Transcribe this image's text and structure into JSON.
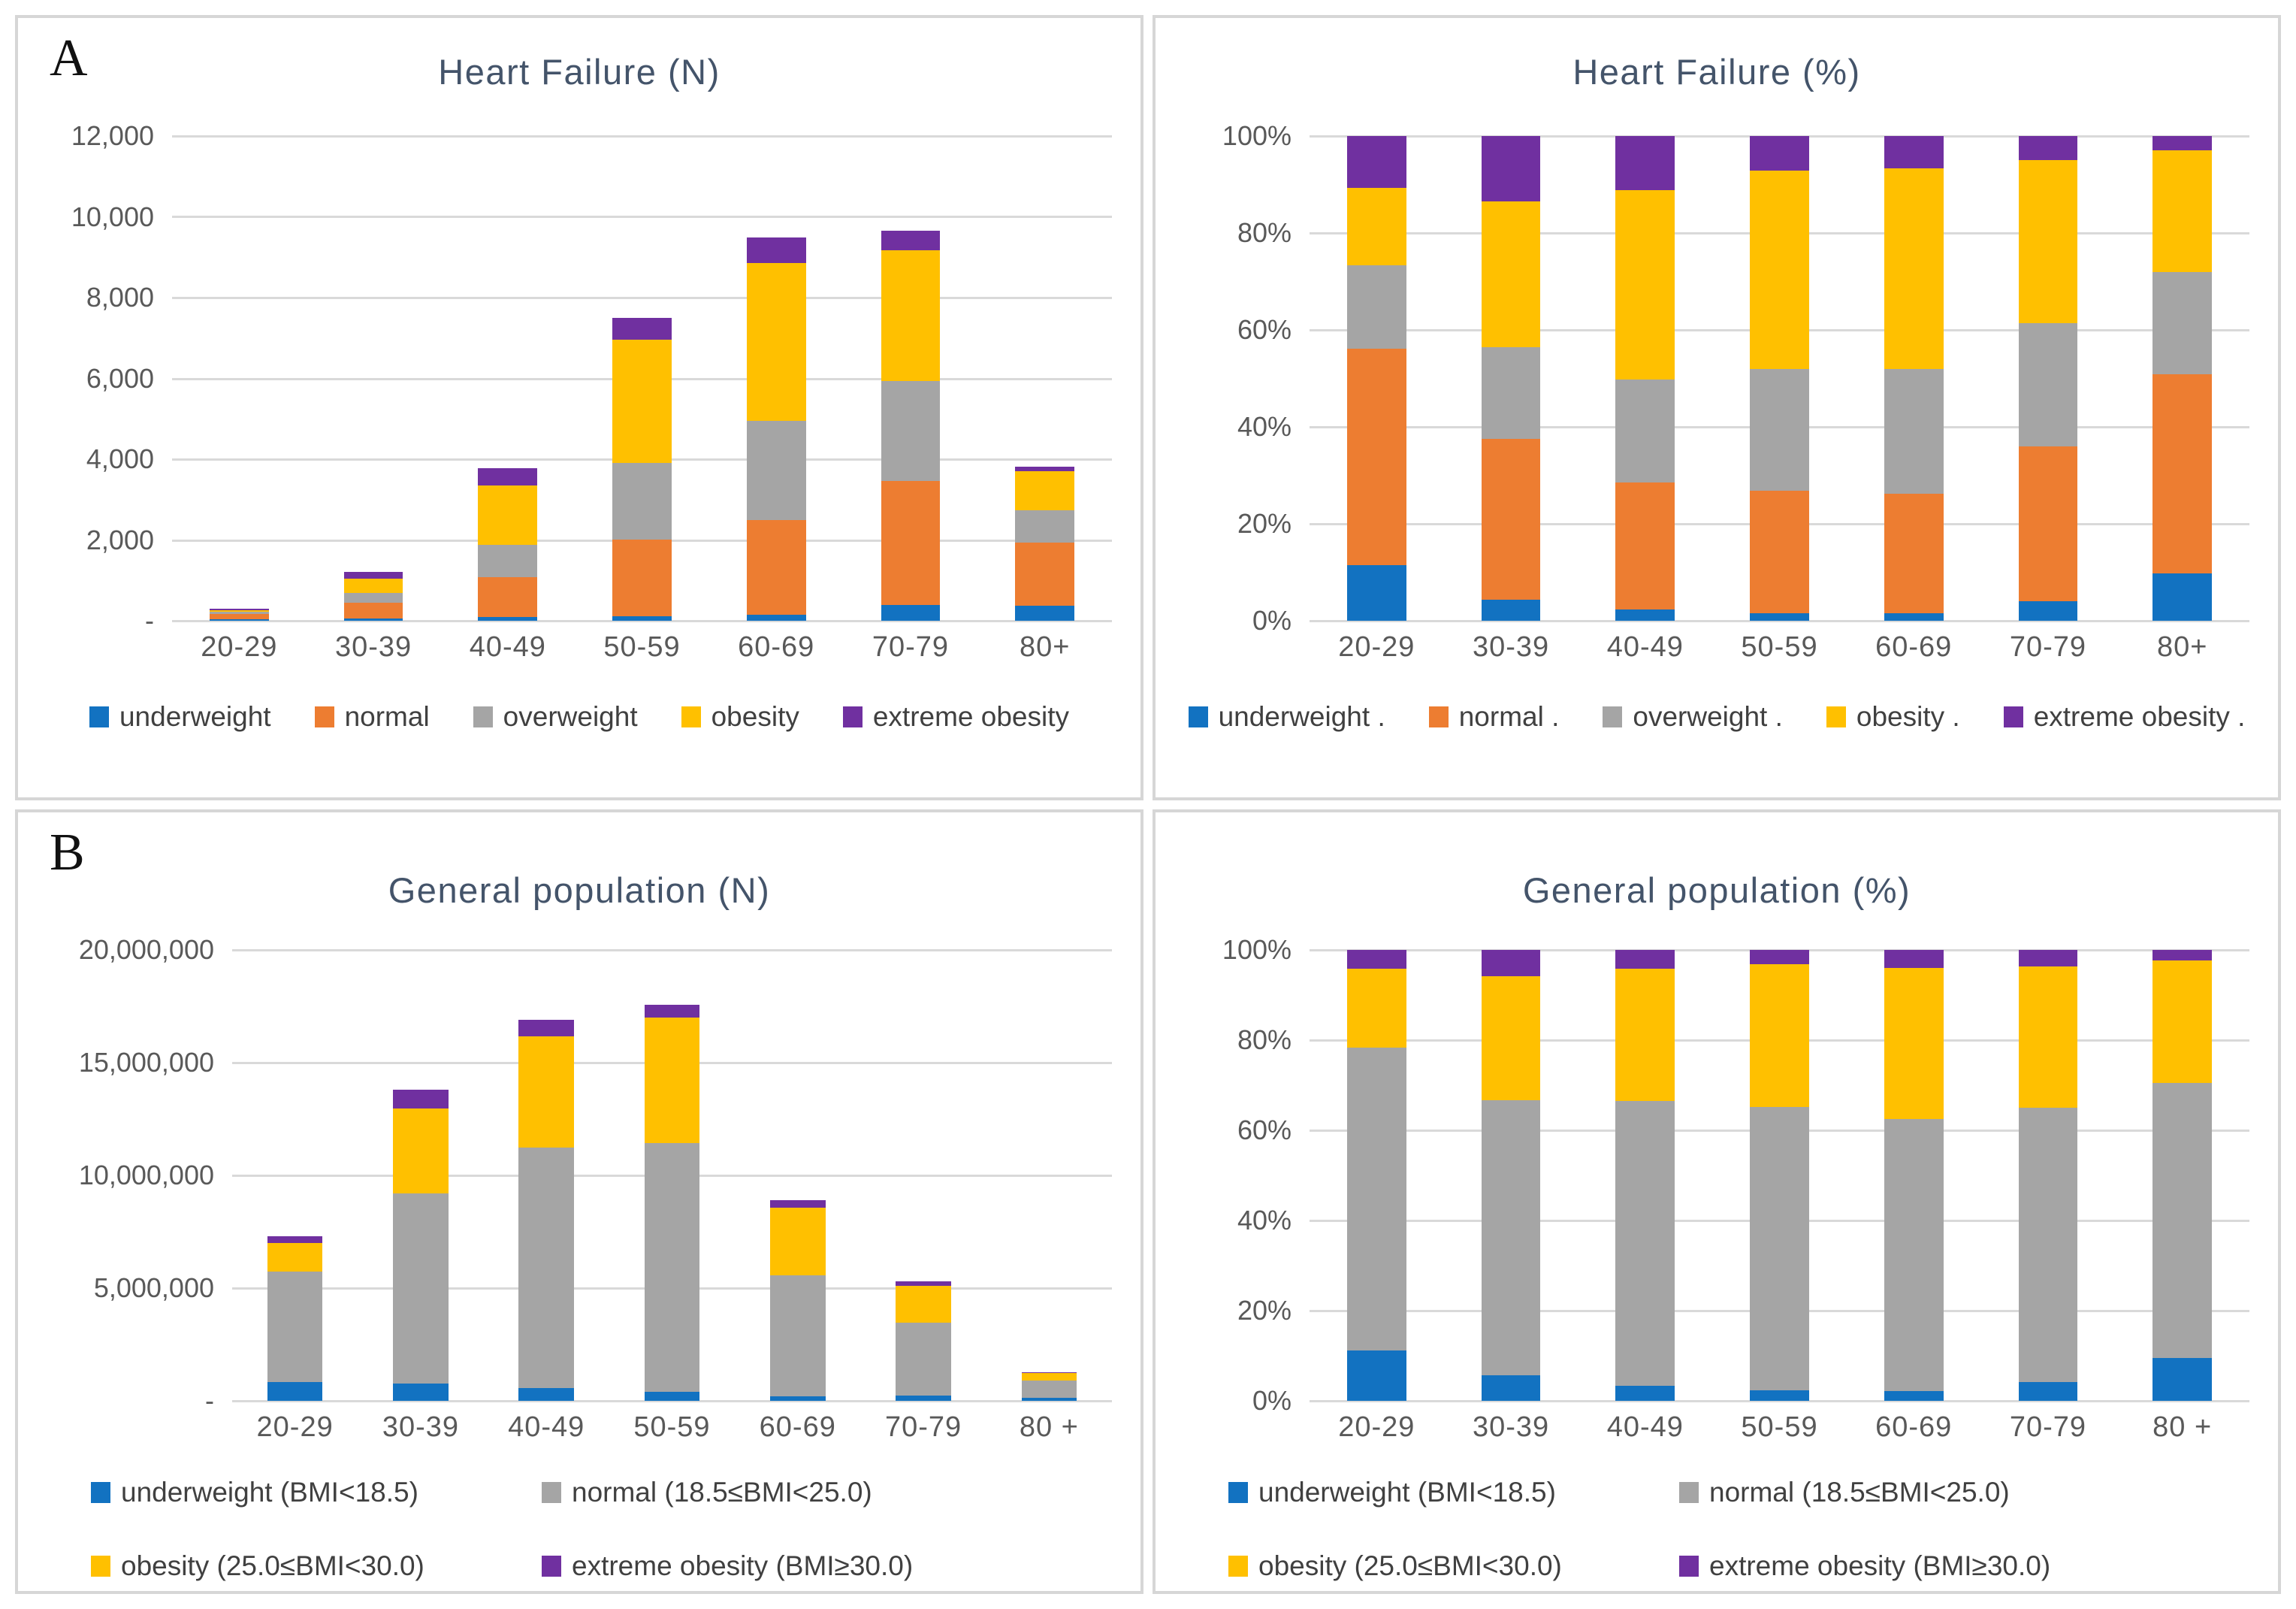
{
  "panels": {
    "a": "A",
    "b": "B"
  },
  "colors": {
    "underweight": "#1272C1",
    "normal_hf": "#ED7D31",
    "overweight": "#A5A5A5",
    "obesity": "#FFC000",
    "extreme_obesity": "#7030A0",
    "title_text": "#44546A",
    "axis_text": "#595959",
    "legend_text": "#404040",
    "gridline": "#D9D9D9",
    "panel_border": "#D6D6D6"
  },
  "chart_data": [
    {
      "type": "bar",
      "stacked": true,
      "title": "Heart Failure (N)",
      "categories": [
        "20-29",
        "30-39",
        "40-49",
        "50-59",
        "60-69",
        "70-79",
        "80+"
      ],
      "y_axis": {
        "max": 12000,
        "ticks": [
          {
            "label": "12,000",
            "value": 12000
          },
          {
            "label": "10,000",
            "value": 10000
          },
          {
            "label": "8,000",
            "value": 8000
          },
          {
            "label": "6,000",
            "value": 6000
          },
          {
            "label": "4,000",
            "value": 4000
          },
          {
            "label": "2,000",
            "value": 2000
          },
          {
            "label": "-",
            "value": 0
          }
        ]
      },
      "series": [
        {
          "name": "underweight",
          "color": "#1272C1",
          "values": [
            35,
            50,
            90,
            120,
            150,
            400,
            370
          ]
        },
        {
          "name": "normal",
          "color": "#ED7D31",
          "values": [
            130,
            400,
            990,
            1890,
            2340,
            3070,
            1570
          ]
        },
        {
          "name": "overweight",
          "color": "#A5A5A5",
          "values": [
            50,
            230,
            800,
            1890,
            2450,
            2460,
            800
          ]
        },
        {
          "name": "obesity",
          "color": "#FFC000",
          "values": [
            45,
            365,
            1470,
            3060,
            3910,
            3250,
            955
          ]
        },
        {
          "name": "extreme obesity",
          "color": "#7030A0",
          "values": [
            30,
            165,
            420,
            530,
            640,
            470,
            115
          ]
        }
      ],
      "legend_layout": "row",
      "legend": [
        {
          "label": "underweight",
          "color": "#1272C1"
        },
        {
          "label": "normal",
          "color": "#ED7D31"
        },
        {
          "label": "overweight",
          "color": "#A5A5A5"
        },
        {
          "label": "obesity",
          "color": "#FFC000"
        },
        {
          "label": "extreme obesity",
          "color": "#7030A0"
        }
      ]
    },
    {
      "type": "bar",
      "stacked": true,
      "title": "Heart Failure (%)",
      "categories": [
        "20-29",
        "30-39",
        "40-49",
        "50-59",
        "60-69",
        "70-79",
        "80+"
      ],
      "y_axis": {
        "max": 100,
        "ticks": [
          {
            "label": "100%",
            "value": 100
          },
          {
            "label": "80%",
            "value": 80
          },
          {
            "label": "60%",
            "value": 60
          },
          {
            "label": "40%",
            "value": 40
          },
          {
            "label": "20%",
            "value": 20
          },
          {
            "label": "0%",
            "value": 0
          }
        ]
      },
      "series": [
        {
          "name": "underweight",
          "color": "#1272C1",
          "values": [
            11.4,
            4.3,
            2.4,
            1.6,
            1.6,
            4.1,
            9.7
          ]
        },
        {
          "name": "normal",
          "color": "#ED7D31",
          "values": [
            44.8,
            33.2,
            26.2,
            25.2,
            24.6,
            31.8,
            41.2
          ]
        },
        {
          "name": "overweight",
          "color": "#A5A5A5",
          "values": [
            17.2,
            18.9,
            21.2,
            25.2,
            25.8,
            25.5,
            21.0
          ]
        },
        {
          "name": "obesity",
          "color": "#FFC000",
          "values": [
            15.9,
            30.1,
            39.0,
            40.9,
            41.3,
            33.7,
            25.1
          ]
        },
        {
          "name": "extreme obesity",
          "color": "#7030A0",
          "values": [
            10.7,
            13.5,
            11.2,
            7.1,
            6.7,
            4.9,
            3.0
          ]
        }
      ],
      "legend_layout": "row",
      "legend": [
        {
          "label": "underweight .",
          "color": "#1272C1"
        },
        {
          "label": "normal .",
          "color": "#ED7D31"
        },
        {
          "label": "overweight .",
          "color": "#A5A5A5"
        },
        {
          "label": "obesity .",
          "color": "#FFC000"
        },
        {
          "label": "extreme obesity .",
          "color": "#7030A0"
        }
      ]
    },
    {
      "type": "bar",
      "stacked": true,
      "title": "General population (N)",
      "categories": [
        "20-29",
        "30-39",
        "40-49",
        "50-59",
        "60-69",
        "70-79",
        "80 +"
      ],
      "y_axis": {
        "max": 20000000,
        "ticks": [
          {
            "label": "20,000,000",
            "value": 20000000
          },
          {
            "label": "15,000,000",
            "value": 15000000
          },
          {
            "label": "10,000,000",
            "value": 10000000
          },
          {
            "label": "5,000,000",
            "value": 5000000
          },
          {
            "label": "-",
            "value": 0
          }
        ]
      },
      "series": [
        {
          "name": "underweight (BMI<18.5)",
          "color": "#1272C1",
          "values": [
            810000,
            760000,
            540000,
            370000,
            190000,
            220000,
            120000
          ]
        },
        {
          "name": "normal (18.5≤BMI<25.0)",
          "color": "#A5A5A5",
          "values": [
            4910000,
            8420000,
            10680000,
            11050000,
            5370000,
            3220000,
            760000
          ]
        },
        {
          "name": "obesity (25.0≤BMI<30.0)",
          "color": "#FFC000",
          "values": [
            1270000,
            3780000,
            4930000,
            5560000,
            2980000,
            1660000,
            340000
          ]
        },
        {
          "name": "extreme obesity (BMI≥30.0)",
          "color": "#7030A0",
          "values": [
            310000,
            810000,
            730000,
            580000,
            360000,
            200000,
            30000
          ]
        }
      ],
      "legend_layout": "grid",
      "legend": [
        {
          "label": "underweight (BMI<18.5)",
          "color": "#1272C1"
        },
        {
          "label": "normal (18.5≤BMI<25.0)",
          "color": "#A5A5A5"
        },
        {
          "label": "obesity (25.0≤BMI<30.0)",
          "color": "#FFC000"
        },
        {
          "label": "extreme obesity (BMI≥30.0)",
          "color": "#7030A0"
        }
      ]
    },
    {
      "type": "bar",
      "stacked": true,
      "title": "General population (%)",
      "categories": [
        "20-29",
        "30-39",
        "40-49",
        "50-59",
        "60-69",
        "70-79",
        "80 +"
      ],
      "y_axis": {
        "max": 100,
        "ticks": [
          {
            "label": "100%",
            "value": 100
          },
          {
            "label": "80%",
            "value": 80
          },
          {
            "label": "60%",
            "value": 60
          },
          {
            "label": "40%",
            "value": 40
          },
          {
            "label": "20%",
            "value": 20
          },
          {
            "label": "0%",
            "value": 0
          }
        ]
      },
      "series": [
        {
          "name": "underweight (BMI<18.5)",
          "color": "#1272C1",
          "values": [
            11.1,
            5.6,
            3.2,
            2.2,
            2.1,
            4.1,
            9.5
          ]
        },
        {
          "name": "normal (18.5≤BMI<25.0)",
          "color": "#A5A5A5",
          "values": [
            67.2,
            61.0,
            63.3,
            62.9,
            60.4,
            60.8,
            60.9
          ]
        },
        {
          "name": "obesity (25.0≤BMI<30.0)",
          "color": "#FFC000",
          "values": [
            17.4,
            27.5,
            29.2,
            31.6,
            33.5,
            31.4,
            27.2
          ]
        },
        {
          "name": "extreme obesity (BMI≥30.0)",
          "color": "#7030A0",
          "values": [
            4.3,
            5.9,
            4.3,
            3.3,
            4.0,
            3.7,
            2.4
          ]
        }
      ],
      "legend_layout": "grid",
      "legend": [
        {
          "label": "underweight (BMI<18.5)",
          "color": "#1272C1"
        },
        {
          "label": "normal (18.5≤BMI<25.0)",
          "color": "#A5A5A5"
        },
        {
          "label": "obesity (25.0≤BMI<30.0)",
          "color": "#FFC000"
        },
        {
          "label": "extreme obesity (BMI≥30.0)",
          "color": "#7030A0"
        }
      ]
    }
  ]
}
